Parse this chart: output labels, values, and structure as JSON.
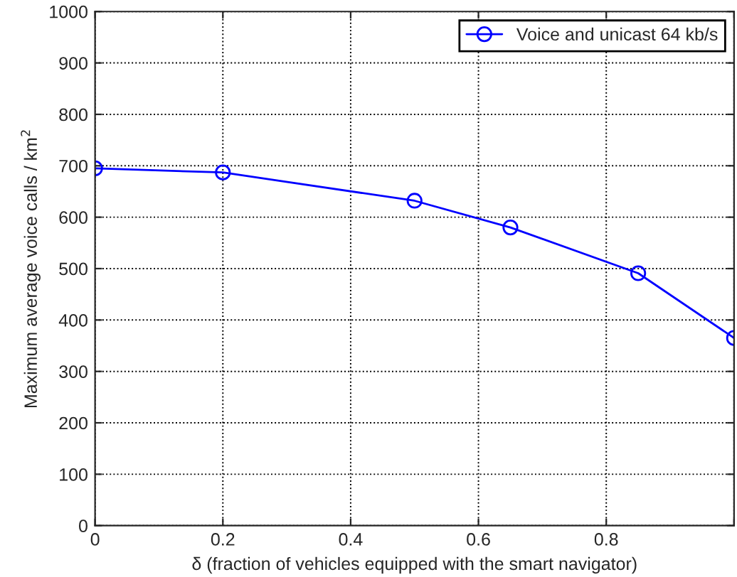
{
  "chart_data": {
    "type": "line",
    "xlabel": "δ (fraction of vehicles equipped with the smart navigator)",
    "ylabel": "Maximum average voice calls / km$^{2}$",
    "x": [
      0,
      0.2,
      0.5,
      0.65,
      0.85,
      1.0
    ],
    "series": [
      {
        "name": "Voice and unicast 64 kb/s",
        "color": "#0000ff",
        "values": [
          695,
          687,
          632,
          580,
          491,
          365
        ]
      }
    ],
    "xlim": [
      0,
      1
    ],
    "xticks": [
      0,
      0.2,
      0.4,
      0.6,
      0.8,
      {
        "value": 1,
        "label": null
      }
    ],
    "ylim": [
      0,
      1000
    ],
    "yticks": [
      0,
      100,
      200,
      300,
      400,
      500,
      600,
      700,
      800,
      900,
      1000
    ],
    "grid": true,
    "legend": "top right",
    "marker": "circle",
    "line_style": "solid"
  }
}
